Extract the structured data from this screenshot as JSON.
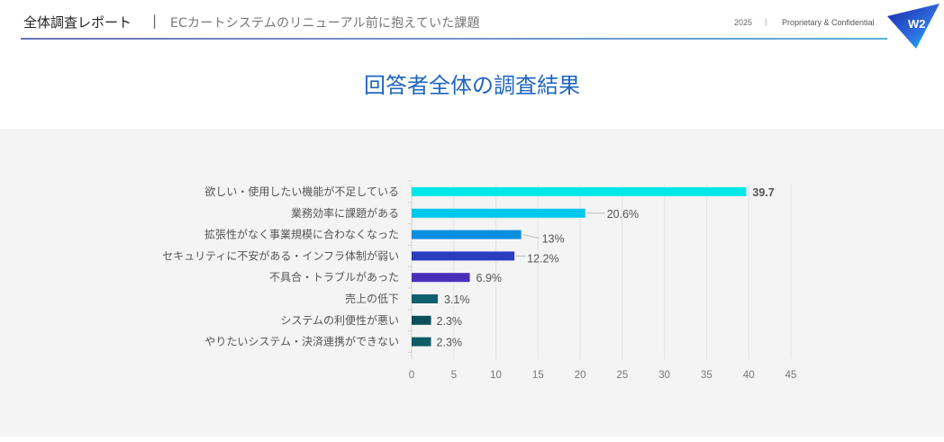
{
  "header": {
    "title": "全体調査レポート",
    "separator": "|",
    "subtitle": "ECカートシステムのリニューアル前に抱えていた課題",
    "year": "2025",
    "year_separator": "|",
    "confidential": "Proprietary & Confidential",
    "logo_text": "W2"
  },
  "main_title": "回答者全体の調査結果",
  "chart_data": {
    "type": "bar",
    "orientation": "horizontal",
    "title": "回答者全体の調査結果",
    "xlabel": "",
    "ylabel": "",
    "xlim": [
      0,
      45
    ],
    "x_ticks": [
      "0",
      "5",
      "10",
      "15",
      "20",
      "25",
      "30",
      "35",
      "40",
      "45"
    ],
    "grid": true,
    "categories": [
      "欲しい・使用したい機能が不足している",
      "業務効率に課題がある",
      "拡張性がなく事業規模に合わなくなった",
      "セキュリティに不安がある・インフラ体制が弱い",
      "不具合・トラブルがあった",
      "売上の低下",
      "システムの利便性が悪い",
      "やりたいシステム・決済連携ができない"
    ],
    "values": [
      39.7,
      20.6,
      13,
      12.2,
      6.9,
      3.1,
      2.3,
      2.3
    ],
    "data_labels": [
      "39.7",
      "20.6%",
      "13%",
      "12.2%",
      "6.9%",
      "3.1%",
      "2.3%",
      "2.3%"
    ],
    "colors": [
      "#00e8e8",
      "#00c8ec",
      "#0a8ee0",
      "#2a3cc0",
      "#4a30b8",
      "#0f6070",
      "#0b4e5c",
      "#0f5c66"
    ]
  }
}
